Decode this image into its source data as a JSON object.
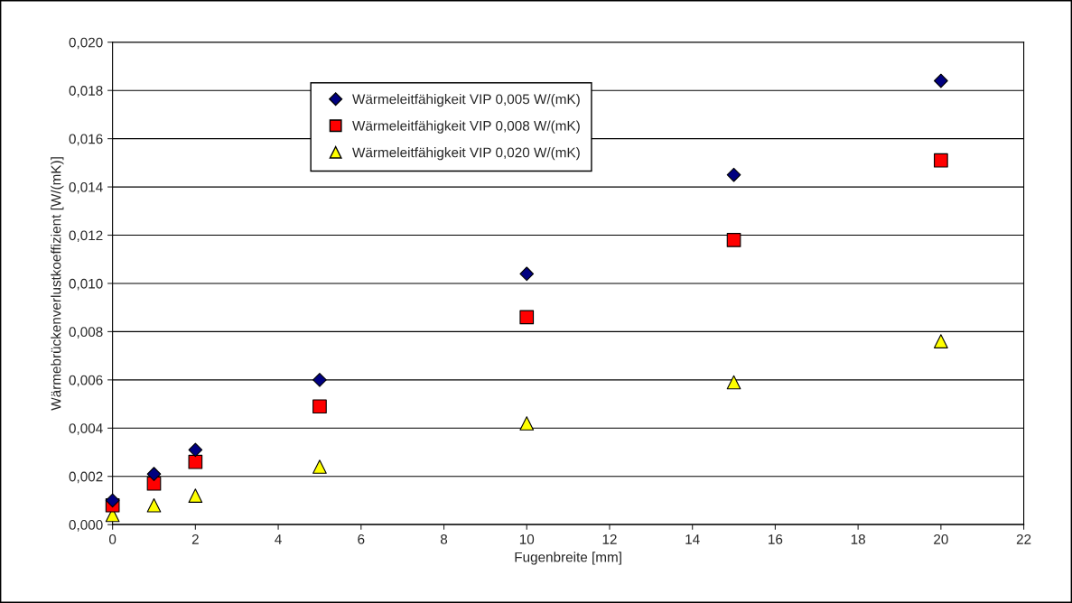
{
  "chart_data": {
    "type": "scatter",
    "xlabel": "Fugenbreite [mm]",
    "ylabel": "Wärmebrückenverlustkoeffizient [W/(mK)]",
    "x": [
      0,
      1,
      2,
      5,
      10,
      15,
      20
    ],
    "series": [
      {
        "name": "Wärmeleitfähigkeit VIP 0,005 W/(mK)",
        "color": "#000080",
        "marker": "diamond",
        "values": [
          0.001,
          0.0021,
          0.0031,
          0.006,
          0.0104,
          0.0145,
          0.0184
        ]
      },
      {
        "name": "Wärmeleitfähigkeit VIP 0,008 W/(mK)",
        "color": "#ff0000",
        "marker": "square",
        "values": [
          0.0008,
          0.0017,
          0.0026,
          0.0049,
          0.0086,
          0.0118,
          0.0151
        ]
      },
      {
        "name": "Wärmeleitfähigkeit VIP 0,020 W/(mK)",
        "color": "#ffff00",
        "marker": "triangle",
        "values": [
          0.0004,
          0.0008,
          0.0012,
          0.0024,
          0.0042,
          0.0059,
          0.0076
        ]
      }
    ],
    "xlim": [
      0,
      22
    ],
    "xticks": [
      0,
      2,
      4,
      6,
      8,
      10,
      12,
      14,
      16,
      18,
      20,
      22
    ],
    "ylim": [
      0,
      0.02
    ],
    "yticks": [
      {
        "value": 0,
        "label": "0,000"
      },
      {
        "value": 0.002,
        "label": "0,002"
      },
      {
        "value": 0.004,
        "label": "0,004"
      },
      {
        "value": 0.006,
        "label": "0,006"
      },
      {
        "value": 0.008,
        "label": "0,008"
      },
      {
        "value": 0.01,
        "label": "0,010"
      },
      {
        "value": 0.012,
        "label": "0,012"
      },
      {
        "value": 0.014,
        "label": "0,014"
      },
      {
        "value": 0.016,
        "label": "0,016"
      },
      {
        "value": 0.018,
        "label": "0,018"
      },
      {
        "value": 0.02,
        "label": "0,020"
      }
    ],
    "grid": "y",
    "legend": "top left"
  }
}
